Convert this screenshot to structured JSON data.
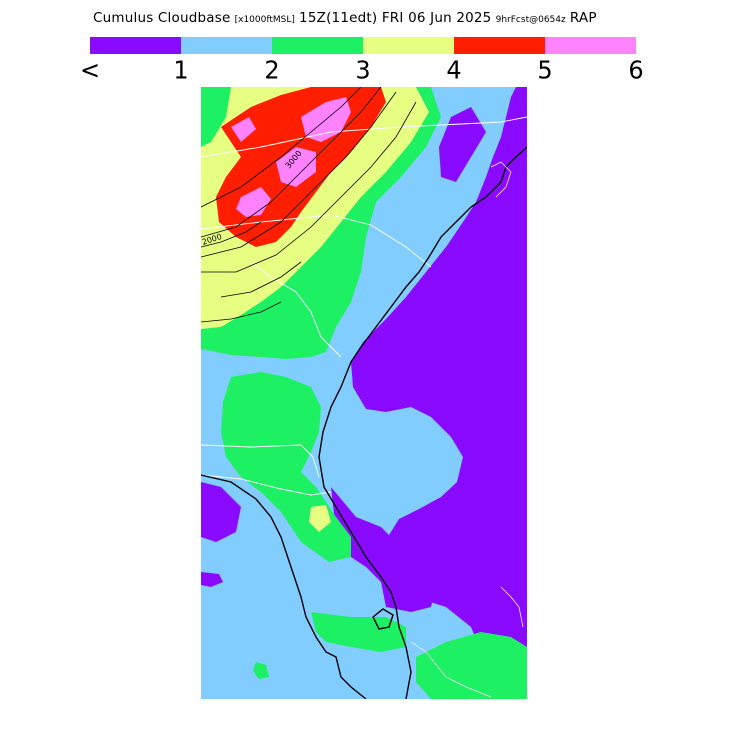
{
  "header": {
    "title_main": "Cumulus Cloudbase",
    "title_units": "[x1000ftMSL]",
    "title_time": "15Z(11edt) FRI 06 Jun 2025",
    "title_fcst": "9hrFcst@0654z",
    "title_model": "RAP"
  },
  "legend": {
    "colors": [
      "#8a0aff",
      "#82cdff",
      "#1ef064",
      "#e6ff82",
      "#ff1e00",
      "#ff82ff"
    ],
    "tick_labels": [
      "<",
      "1",
      "2",
      "3",
      "4",
      "5",
      "6"
    ]
  },
  "map": {
    "contour_labels": [
      "2000",
      "3000"
    ],
    "background_color": "#82cdff"
  }
}
